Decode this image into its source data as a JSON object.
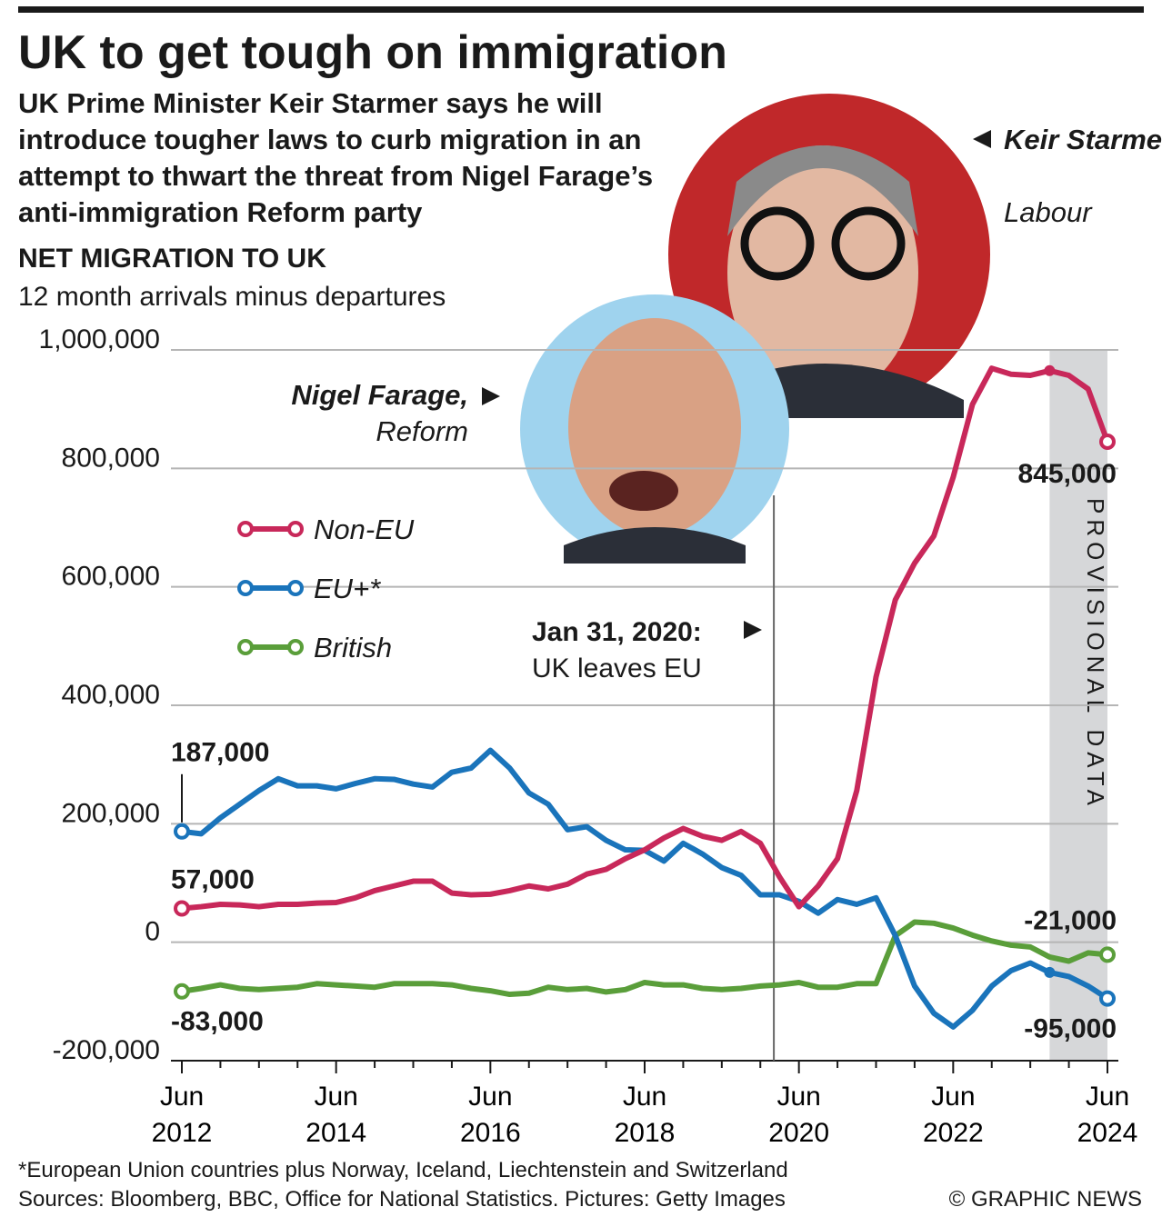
{
  "header": {
    "title": "UK to get tough on immigration",
    "subtitle": "UK Prime Minister Keir Starmer says he will introduce tougher laws to curb migration in an attempt to thwart the threat from Nigel Farage’s anti-immigration Reform party"
  },
  "photos": [
    {
      "name": "Keir Starmer,",
      "party": "Labour"
    },
    {
      "name": "Nigel Farage,",
      "party": "Reform"
    }
  ],
  "chart_data": {
    "type": "line",
    "title": "NET MIGRATION TO UK",
    "subtitle": "12 month arrivals minus departures",
    "categories": [
      "Jun 2012",
      null,
      null,
      null,
      null,
      null,
      null,
      null,
      "Jun 2014",
      null,
      null,
      null,
      null,
      null,
      null,
      null,
      "Jun 2016",
      null,
      null,
      null,
      null,
      null,
      null,
      null,
      "Jun 2018",
      null,
      null,
      null,
      null,
      null,
      null,
      null,
      "Jun 2020",
      null,
      null,
      null,
      null,
      null,
      null,
      null,
      "Jun 2022",
      null,
      null,
      null,
      null,
      null,
      null,
      null,
      "Jun 2024"
    ],
    "series": [
      {
        "name": "Non-EU",
        "color": "#c8285a",
        "values": [
          57000,
          60000,
          64000,
          63000,
          60000,
          64000,
          64000,
          66000,
          67000,
          75000,
          87000,
          95000,
          103000,
          103000,
          83000,
          80000,
          81000,
          87000,
          95000,
          90000,
          98000,
          115000,
          123000,
          141000,
          156000,
          176000,
          192000,
          179000,
          172000,
          187000,
          167000,
          110000,
          60000,
          95000,
          141000,
          256000,
          448000,
          578000,
          640000,
          686000,
          785000,
          908000,
          969000,
          959000,
          957000,
          965000,
          957000,
          934000,
          845000
        ],
        "value_labels": [
          "57,000",
          null,
          null,
          null,
          null,
          null,
          null,
          null,
          null,
          null,
          null,
          null,
          null,
          null,
          null,
          null,
          null,
          null,
          null,
          null,
          null,
          null,
          null,
          null,
          null,
          null,
          null,
          null,
          null,
          null,
          null,
          null,
          null,
          null,
          null,
          null,
          null,
          null,
          null,
          null,
          null,
          null,
          null,
          null,
          null,
          null,
          null,
          null,
          "845,000"
        ]
      },
      {
        "name": "EU+*",
        "color": "#1a74bb",
        "values": [
          187000,
          183000,
          210000,
          233000,
          256000,
          276000,
          264000,
          264000,
          259000,
          268000,
          276000,
          275000,
          267000,
          262000,
          287000,
          294000,
          324000,
          294000,
          252000,
          233000,
          190000,
          195000,
          172000,
          156000,
          155000,
          137000,
          167000,
          149000,
          126000,
          113000,
          80000,
          80000,
          69000,
          49000,
          72000,
          64000,
          75000,
          11000,
          -74000,
          -120000,
          -143000,
          -115000,
          -74000,
          -48000,
          -35000,
          -51000,
          -58000,
          -74000,
          -95000
        ],
        "value_labels": [
          "187,000",
          null,
          null,
          null,
          null,
          null,
          null,
          null,
          null,
          null,
          null,
          null,
          null,
          null,
          null,
          null,
          null,
          null,
          null,
          null,
          null,
          null,
          null,
          null,
          null,
          null,
          null,
          null,
          null,
          null,
          null,
          null,
          null,
          null,
          null,
          null,
          null,
          null,
          null,
          null,
          null,
          null,
          null,
          null,
          null,
          null,
          null,
          null,
          "-95,000"
        ]
      },
      {
        "name": "British",
        "color": "#5a9e3a",
        "values": [
          -83000,
          -78000,
          -72000,
          -78000,
          -80000,
          -78000,
          -76000,
          -70000,
          -72000,
          -74000,
          -76000,
          -70000,
          -70000,
          -70000,
          -72000,
          -78000,
          -82000,
          -88000,
          -86000,
          -76000,
          -80000,
          -78000,
          -84000,
          -80000,
          -68000,
          -72000,
          -72000,
          -78000,
          -80000,
          -78000,
          -74000,
          -72000,
          -68000,
          -76000,
          -76000,
          -70000,
          -70000,
          11000,
          34000,
          32000,
          24000,
          12000,
          2000,
          -5000,
          -8000,
          -25000,
          -32000,
          -18000,
          -21000
        ],
        "value_labels": [
          "-83,000",
          null,
          null,
          null,
          null,
          null,
          null,
          null,
          null,
          null,
          null,
          null,
          null,
          null,
          null,
          null,
          null,
          null,
          null,
          null,
          null,
          null,
          null,
          null,
          null,
          null,
          null,
          null,
          null,
          null,
          null,
          null,
          null,
          null,
          null,
          null,
          null,
          null,
          null,
          null,
          null,
          null,
          null,
          null,
          null,
          null,
          null,
          null,
          "-21,000"
        ]
      }
    ],
    "ylim": [
      -200000,
      1000000
    ],
    "yticks": [
      {
        "value": -200000,
        "label": "-200,000"
      },
      0,
      {
        "value": 200000,
        "label": "200,000"
      },
      {
        "value": 400000,
        "label": "400,000"
      },
      {
        "value": 600000,
        "label": "600,000"
      },
      {
        "value": 800000,
        "label": "800,000"
      },
      {
        "value": 1000000,
        "label": "1,000,000"
      }
    ],
    "grid": true,
    "legend": "left",
    "shaded_region": {
      "label": "PROVISIONAL DATA",
      "from_index": 45,
      "to_index": 48
    },
    "event": {
      "index": 30.7,
      "title": "Jan 31, 2020:",
      "text": "UK leaves EU"
    }
  },
  "footer": {
    "note": "*European Union countries plus Norway, Iceland, Liechtenstein and Switzerland",
    "sources": "Sources: Bloomberg, BBC, Office for National Statistics. Pictures: Getty Images",
    "credit": "© GRAPHIC NEWS"
  }
}
